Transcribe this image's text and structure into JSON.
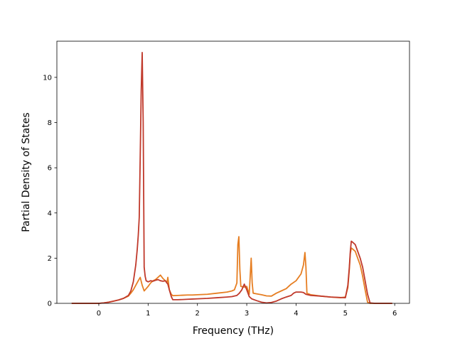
{
  "chart_data": {
    "type": "line",
    "title": "",
    "xlabel": "Frequency (THz)",
    "ylabel": "Partial Density of States",
    "xlim": [
      -0.85,
      6.3
    ],
    "ylim": [
      0,
      11.6
    ],
    "xticks": [
      0,
      1,
      2,
      3,
      4,
      5,
      6
    ],
    "yticks": [
      0,
      2,
      4,
      6,
      8,
      10
    ],
    "grid": false,
    "legend": "none",
    "series": [
      {
        "color": "#e67e22",
        "x": [
          -0.55,
          0,
          0.1,
          0.2,
          0.3,
          0.4,
          0.5,
          0.6,
          0.65,
          0.7,
          0.75,
          0.8,
          0.84,
          0.88,
          0.92,
          0.96,
          1.0,
          1.05,
          1.1,
          1.15,
          1.2,
          1.25,
          1.3,
          1.35,
          1.38,
          1.4,
          1.43,
          1.47,
          1.5,
          1.6,
          1.7,
          1.8,
          1.9,
          2.0,
          2.2,
          2.4,
          2.6,
          2.7,
          2.75,
          2.8,
          2.82,
          2.84,
          2.86,
          2.88,
          2.95,
          3.0,
          3.05,
          3.07,
          3.09,
          3.11,
          3.13,
          3.2,
          3.3,
          3.4,
          3.5,
          3.6,
          3.7,
          3.8,
          3.9,
          4.0,
          4.1,
          4.15,
          4.18,
          4.2,
          4.22,
          4.3,
          4.5,
          4.7,
          4.9,
          5.0,
          5.05,
          5.08,
          5.1,
          5.12,
          5.15,
          5.2,
          5.25,
          5.3,
          5.35,
          5.4,
          5.45,
          5.5,
          5.6,
          5.8,
          5.95
        ],
        "y": [
          0,
          0,
          0.02,
          0.05,
          0.1,
          0.15,
          0.22,
          0.32,
          0.45,
          0.6,
          0.8,
          1.0,
          1.15,
          0.8,
          0.55,
          0.65,
          0.75,
          0.9,
          1.0,
          1.05,
          1.15,
          1.25,
          1.1,
          1.0,
          0.9,
          1.15,
          0.6,
          0.4,
          0.34,
          0.35,
          0.36,
          0.37,
          0.37,
          0.38,
          0.4,
          0.45,
          0.5,
          0.55,
          0.6,
          0.9,
          2.6,
          2.95,
          1.5,
          0.75,
          0.72,
          0.75,
          0.4,
          1.2,
          2.0,
          0.9,
          0.45,
          0.42,
          0.38,
          0.33,
          0.32,
          0.45,
          0.55,
          0.65,
          0.85,
          1.0,
          1.3,
          1.7,
          2.25,
          1.6,
          0.45,
          0.38,
          0.32,
          0.28,
          0.25,
          0.28,
          0.7,
          1.5,
          2.2,
          2.45,
          2.4,
          2.3,
          2.0,
          1.7,
          1.2,
          0.6,
          0.05,
          0,
          0,
          0,
          0
        ]
      },
      {
        "color": "#c0392b",
        "x": [
          -0.55,
          0,
          0.1,
          0.2,
          0.3,
          0.4,
          0.5,
          0.6,
          0.65,
          0.7,
          0.75,
          0.78,
          0.8,
          0.82,
          0.84,
          0.86,
          0.88,
          0.9,
          0.92,
          0.94,
          0.96,
          1.0,
          1.05,
          1.1,
          1.15,
          1.2,
          1.25,
          1.3,
          1.35,
          1.4,
          1.43,
          1.47,
          1.5,
          1.6,
          1.7,
          1.8,
          1.9,
          2.0,
          2.2,
          2.4,
          2.6,
          2.7,
          2.8,
          2.85,
          2.9,
          2.95,
          3.0,
          3.05,
          3.1,
          3.2,
          3.3,
          3.4,
          3.5,
          3.6,
          3.7,
          3.8,
          3.9,
          3.95,
          4.0,
          4.1,
          4.15,
          4.2,
          4.3,
          4.5,
          4.7,
          4.9,
          5.0,
          5.05,
          5.08,
          5.1,
          5.12,
          5.15,
          5.2,
          5.25,
          5.3,
          5.35,
          5.4,
          5.45,
          5.5,
          5.6,
          5.8,
          5.95
        ],
        "y": [
          0,
          0,
          0.02,
          0.05,
          0.1,
          0.15,
          0.22,
          0.35,
          0.55,
          0.95,
          1.7,
          2.4,
          3.0,
          3.8,
          6.5,
          9.4,
          11.1,
          8.0,
          1.6,
          1.2,
          1.0,
          0.95,
          1.0,
          0.98,
          1.02,
          1.05,
          1.0,
          0.98,
          1.0,
          0.85,
          0.6,
          0.3,
          0.16,
          0.16,
          0.17,
          0.18,
          0.19,
          0.2,
          0.22,
          0.25,
          0.28,
          0.3,
          0.35,
          0.45,
          0.6,
          0.85,
          0.6,
          0.3,
          0.2,
          0.12,
          0.05,
          0.02,
          0.04,
          0.1,
          0.2,
          0.28,
          0.35,
          0.45,
          0.5,
          0.5,
          0.48,
          0.4,
          0.35,
          0.32,
          0.28,
          0.26,
          0.25,
          0.8,
          1.6,
          2.3,
          2.75,
          2.7,
          2.6,
          2.3,
          2.0,
          1.6,
          1.0,
          0.4,
          0.02,
          0,
          0,
          0
        ]
      }
    ]
  }
}
